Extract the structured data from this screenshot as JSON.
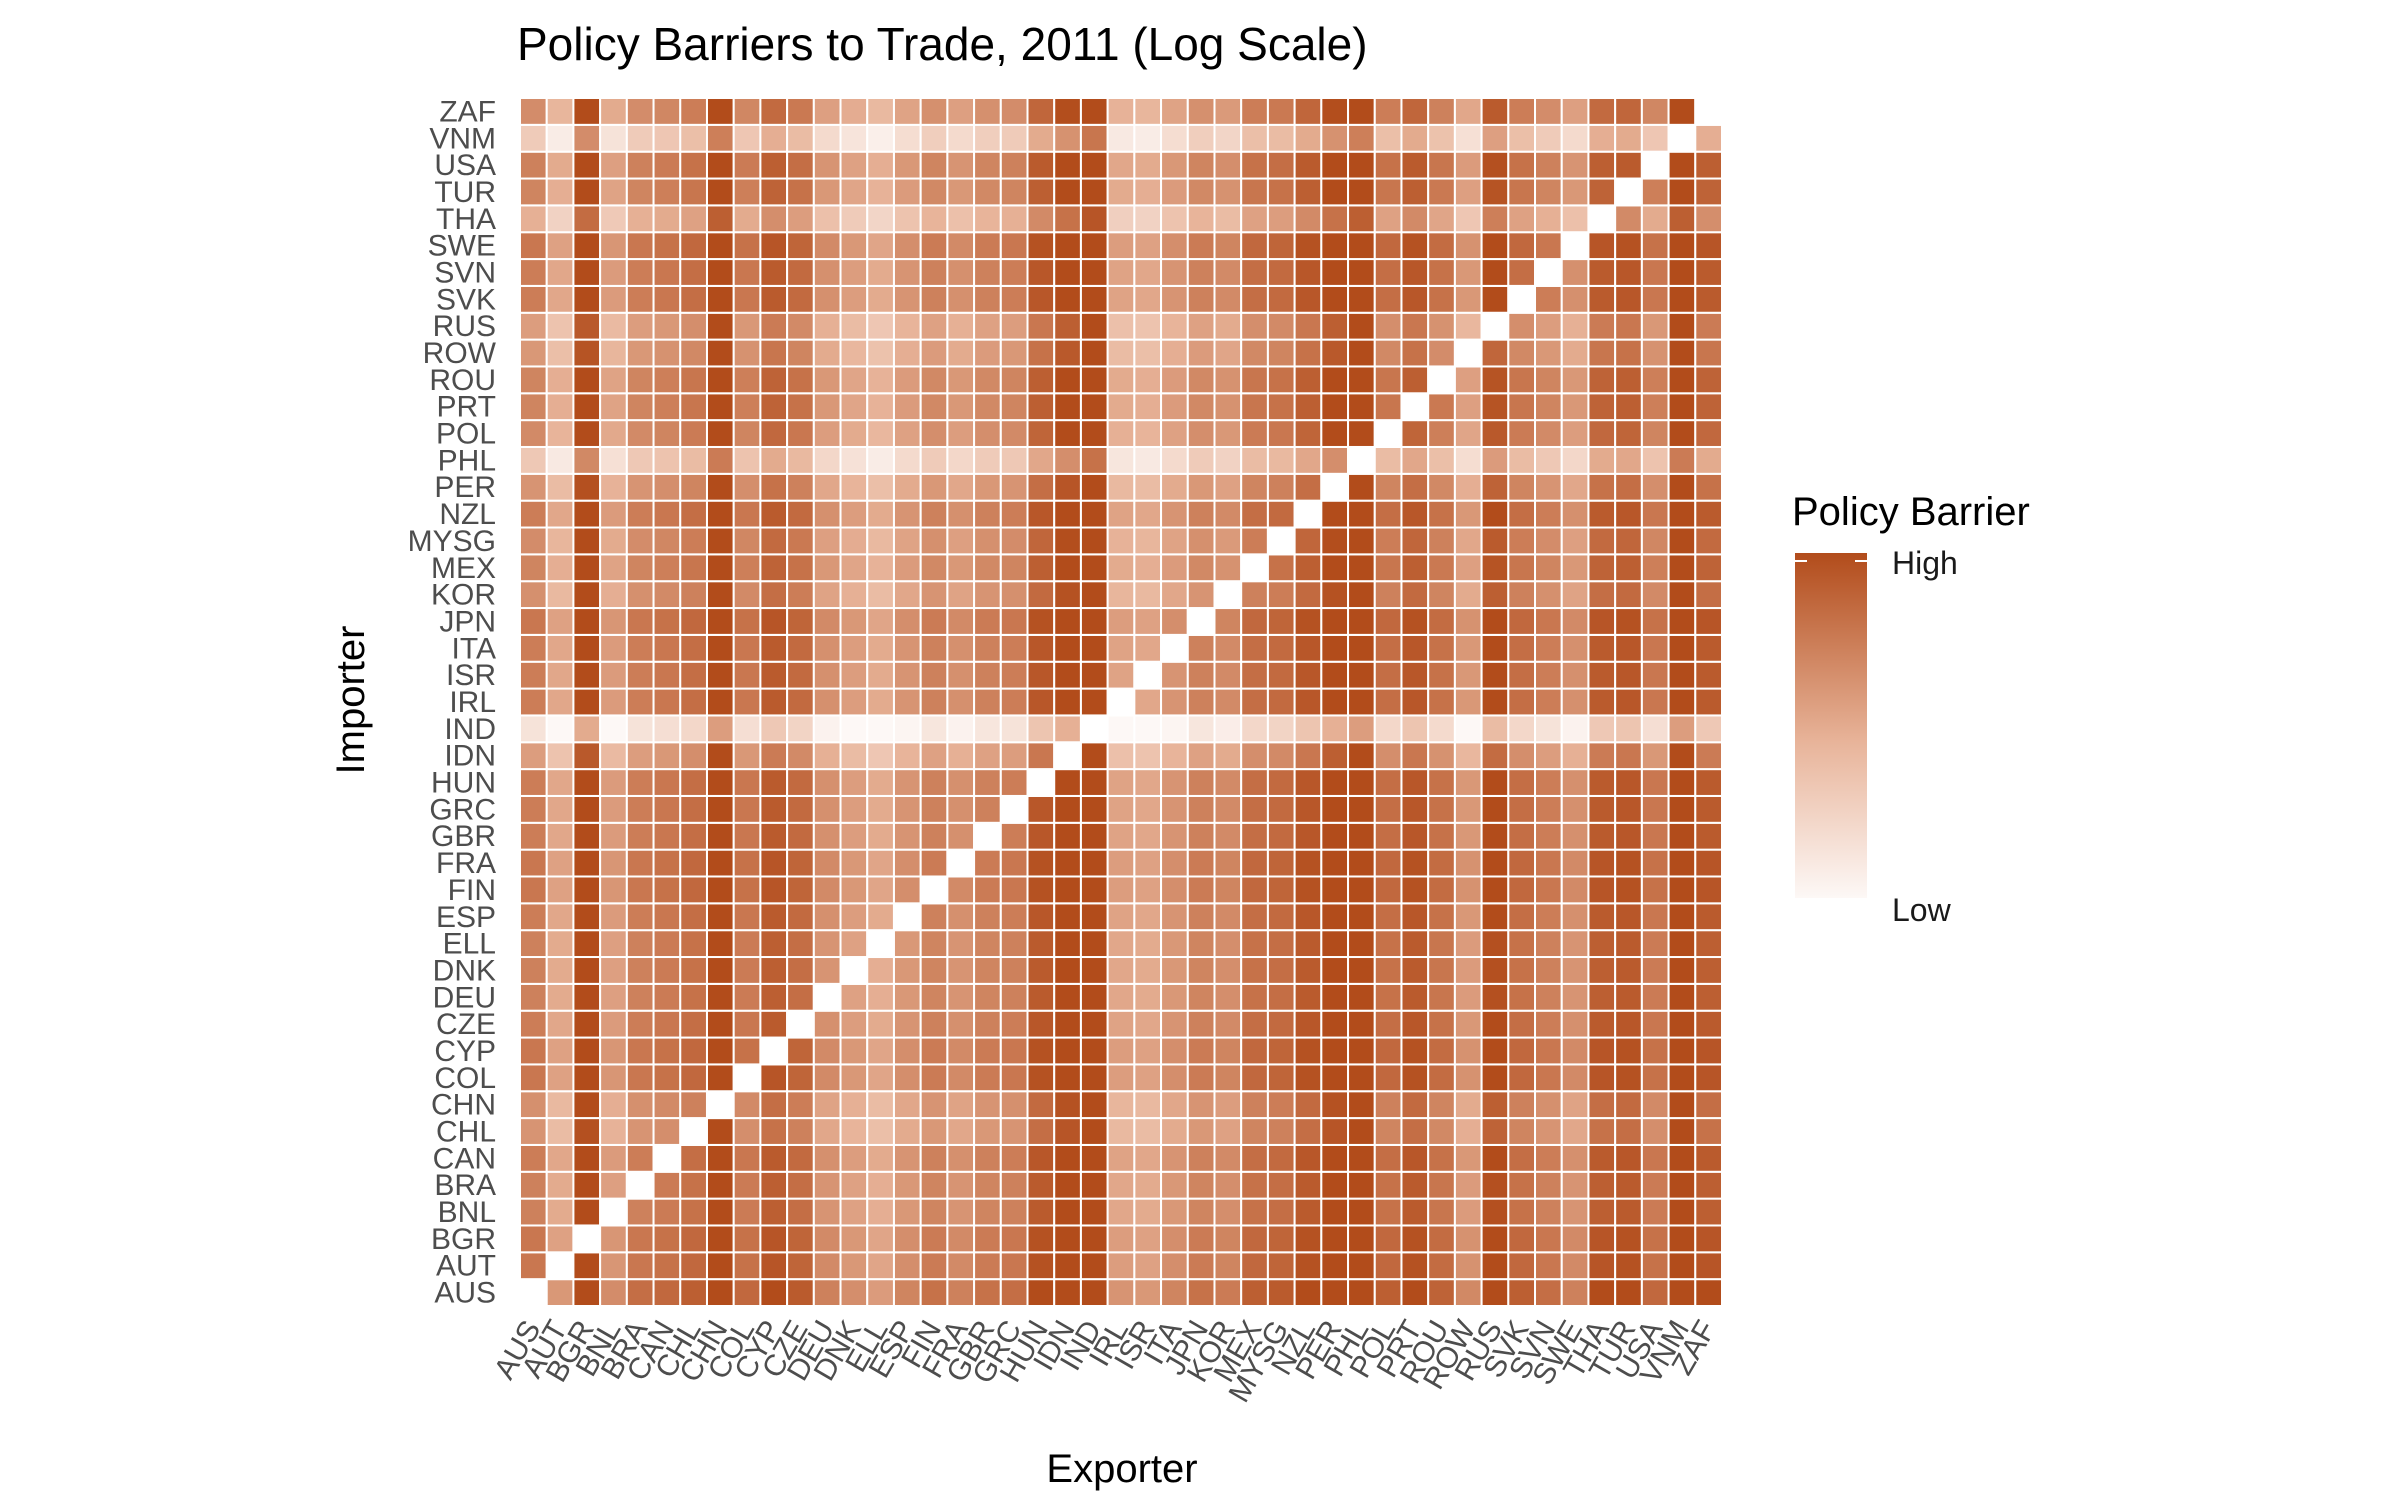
{
  "chart_data": {
    "type": "heatmap",
    "title": "Policy Barriers to Trade, 2011 (Log Scale)",
    "xlabel": "Exporter",
    "ylabel": "Importer",
    "countries": [
      "AUS",
      "AUT",
      "BGR",
      "BNL",
      "BRA",
      "CAN",
      "CHL",
      "CHN",
      "COL",
      "CYP",
      "CZE",
      "DEU",
      "DNK",
      "ELL",
      "ESP",
      "FIN",
      "FRA",
      "GBR",
      "GRC",
      "HUN",
      "IDN",
      "IND",
      "IRL",
      "ISR",
      "ITA",
      "JPN",
      "KOR",
      "MEX",
      "MYSG",
      "NZL",
      "PER",
      "PHL",
      "POL",
      "PRT",
      "ROU",
      "ROW",
      "RUS",
      "SVK",
      "SVN",
      "SWE",
      "THA",
      "TUR",
      "USA",
      "VNM",
      "ZAF"
    ],
    "grid": false,
    "legend": {
      "title": "Policy Barrier",
      "high_label": "High",
      "low_label": "Low",
      "position": "right",
      "low_color": "#fdf8f6",
      "high_color": "#b24c1b"
    },
    "exporter_effects": [
      0.52,
      0.3,
      0.88,
      0.36,
      0.52,
      0.55,
      0.6,
      0.95,
      0.55,
      0.7,
      0.62,
      0.42,
      0.35,
      0.28,
      0.4,
      0.5,
      0.42,
      0.5,
      0.52,
      0.72,
      0.85,
      1.0,
      0.32,
      0.3,
      0.4,
      0.5,
      0.45,
      0.6,
      0.62,
      0.72,
      0.85,
      0.95,
      0.6,
      0.72,
      0.58,
      0.38,
      0.78,
      0.6,
      0.52,
      0.42,
      0.7,
      0.72,
      0.55,
      0.95,
      0.7
    ],
    "importer_effects": [
      0.3,
      0.25,
      0.25,
      0.2,
      0.2,
      0.22,
      0.1,
      0.12,
      0.25,
      0.25,
      0.22,
      0.2,
      0.2,
      0.2,
      0.22,
      0.25,
      0.25,
      0.22,
      0.22,
      0.22,
      0.05,
      -0.38,
      0.22,
      0.22,
      0.22,
      0.25,
      0.12,
      0.18,
      0.14,
      0.22,
      0.1,
      -0.2,
      0.15,
      0.18,
      0.18,
      0.08,
      0.05,
      0.22,
      0.22,
      0.25,
      -0.05,
      0.18,
      0.2,
      -0.22,
      0.14
    ]
  }
}
